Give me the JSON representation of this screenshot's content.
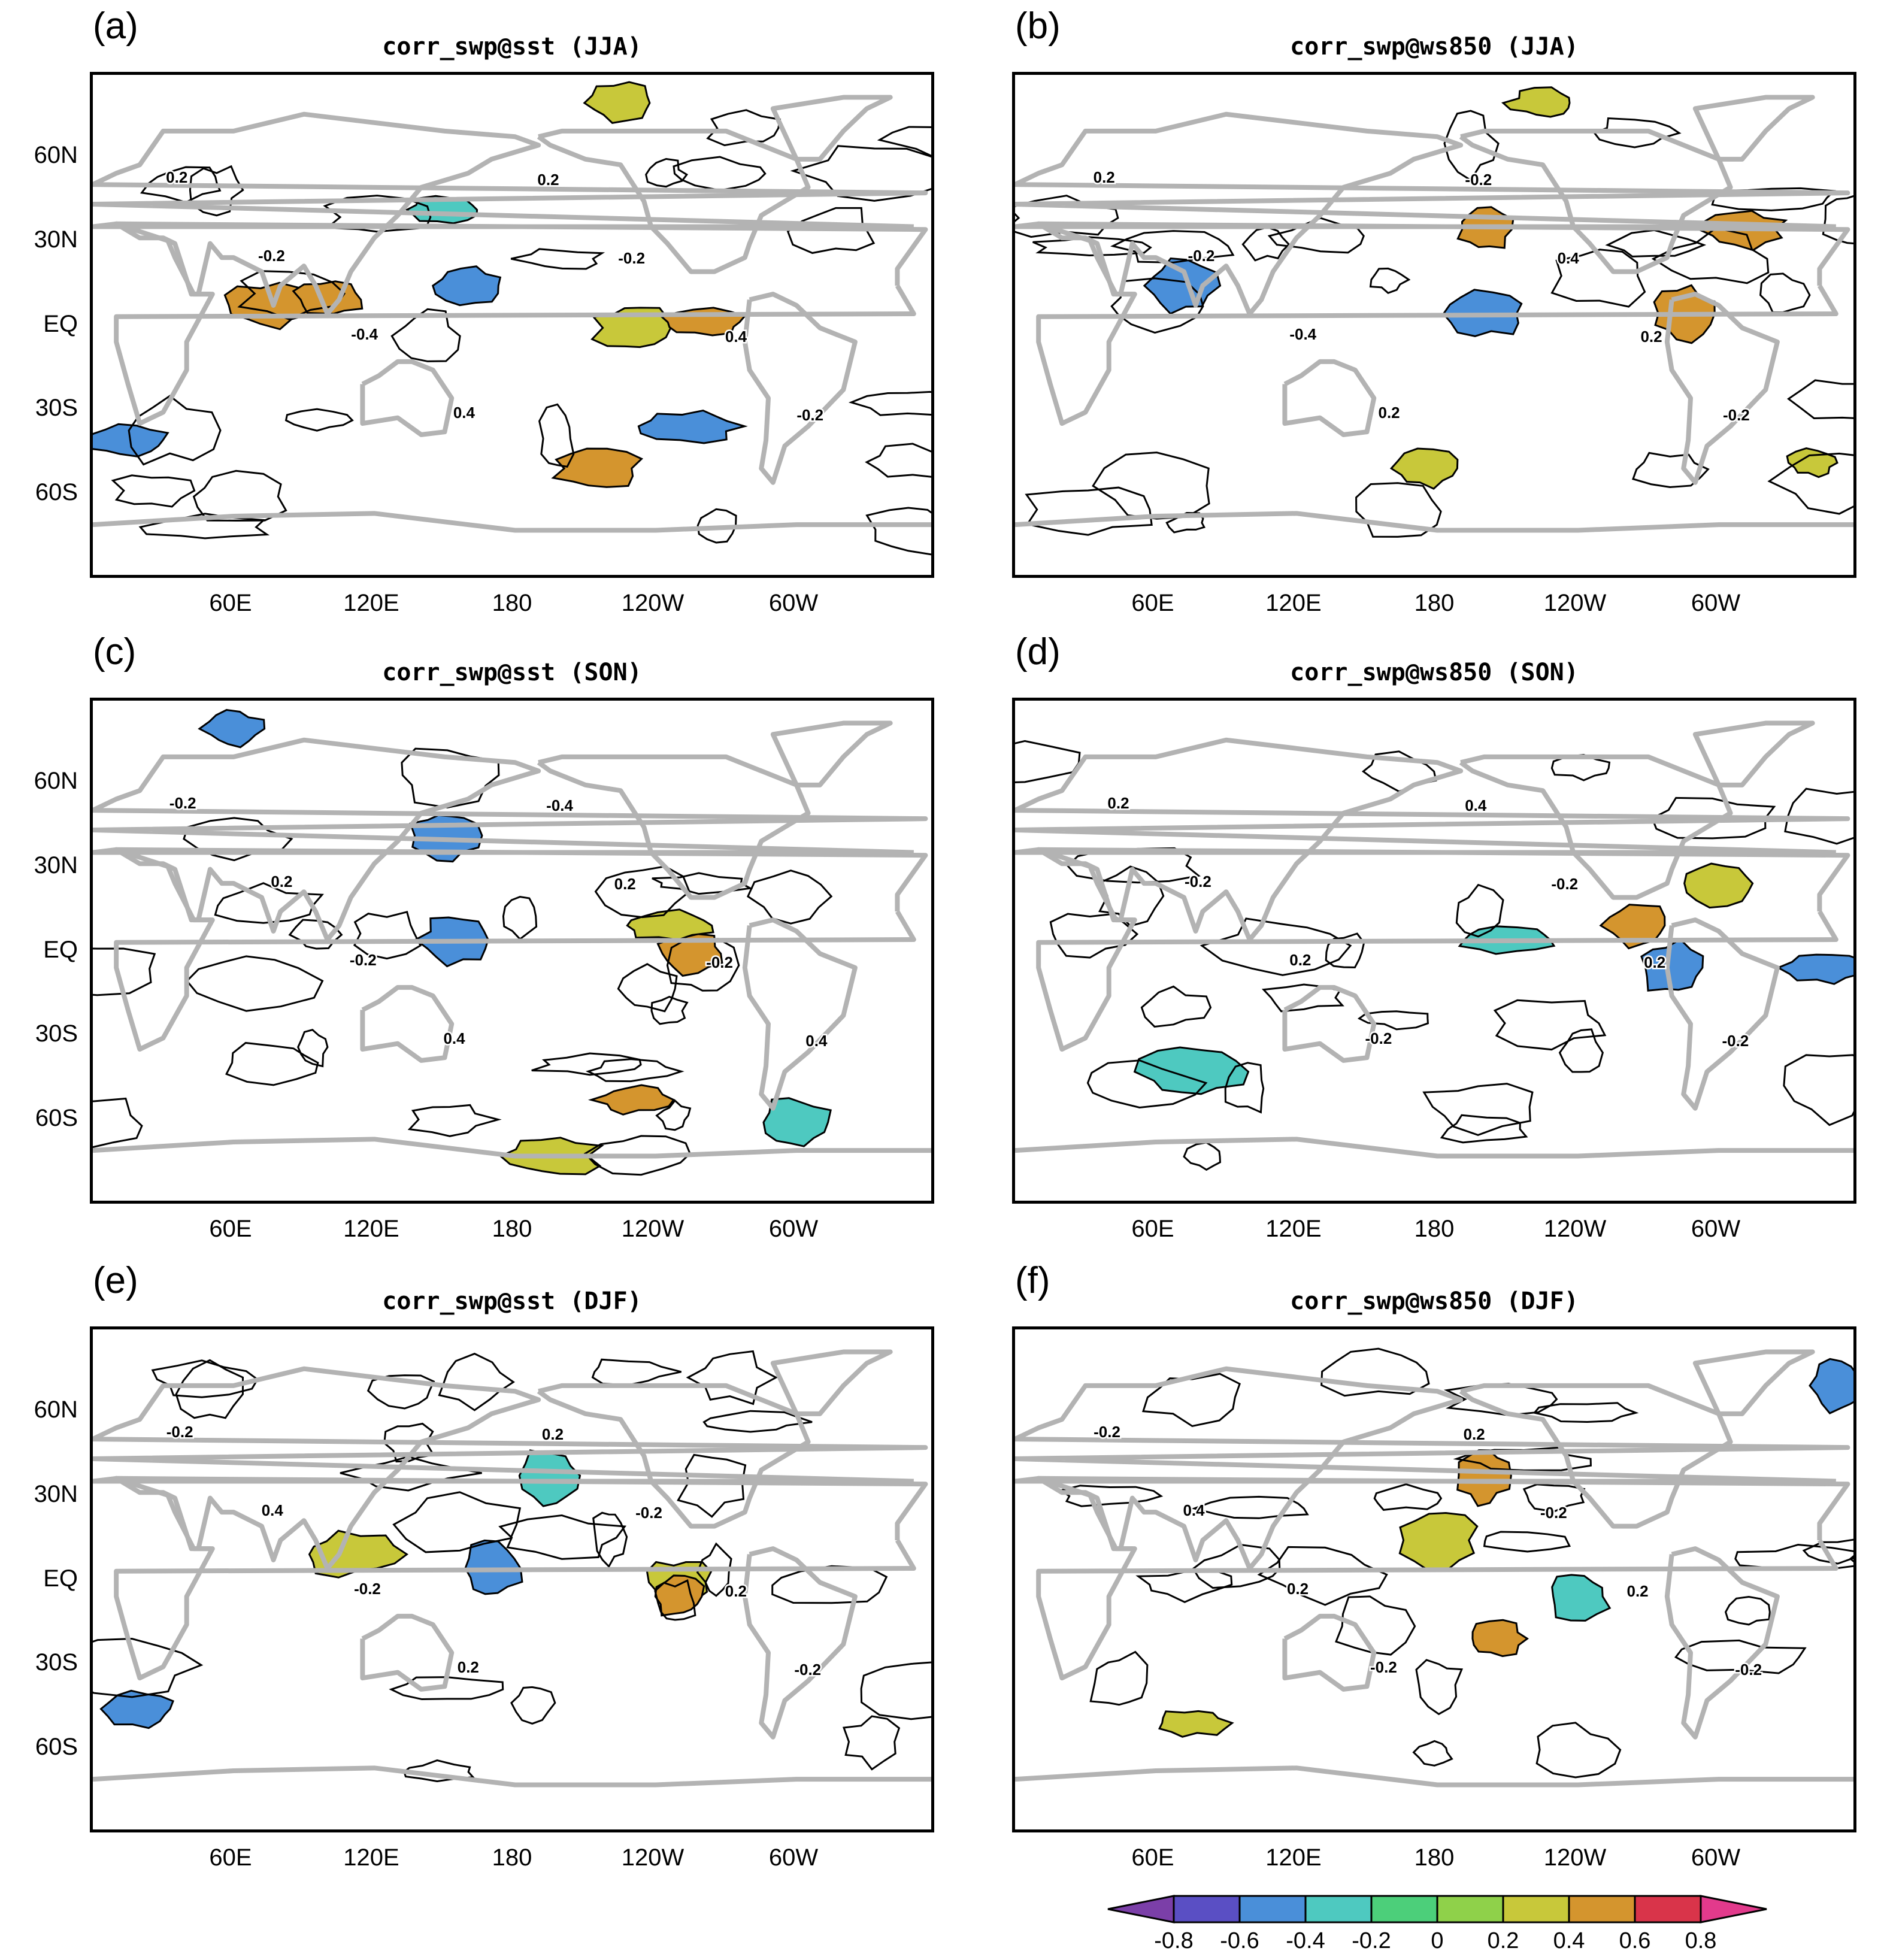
{
  "colors": {
    "land_outline": "#b3b3b3",
    "contour": "#000000",
    "neg_0_6": "#4a8fd9",
    "neg_0_4": "#4ec9c0",
    "pos_0_2": "#c8c83a",
    "pos_0_4": "#d4952e",
    "pos_0_6": "#d9344a"
  },
  "axes": {
    "lat_ticks": [
      "60N",
      "30N",
      "EQ",
      "30S",
      "60S"
    ],
    "lon_ticks": [
      "60E",
      "120E",
      "180",
      "120W",
      "60W"
    ]
  },
  "panels": [
    {
      "id": "a",
      "letter": "(a)",
      "title": "corr_swp@sst (JJA)",
      "contour_labels": [
        "0.2",
        "-0.2",
        "-0.4",
        "0.4",
        "0.2",
        "-0.2",
        "0.4",
        "-0.2"
      ],
      "blobs": [
        {
          "color": "pos_0_4",
          "lon": 75,
          "lat": 8
        },
        {
          "color": "pos_0_4",
          "lon": 100,
          "lat": 10
        },
        {
          "color": "pos_0_2",
          "lon": 230,
          "lat": 0
        },
        {
          "color": "pos_0_4",
          "lon": 260,
          "lat": 2
        },
        {
          "color": "neg_0_6",
          "lon": 160,
          "lat": 15
        },
        {
          "color": "neg_0_6",
          "lon": 255,
          "lat": -35
        },
        {
          "color": "pos_0_4",
          "lon": 215,
          "lat": -50
        },
        {
          "color": "neg_0_6",
          "lon": 15,
          "lat": -40
        },
        {
          "color": "neg_0_4",
          "lon": 150,
          "lat": 42
        },
        {
          "color": "pos_0_2",
          "lon": 225,
          "lat": 80
        }
      ]
    },
    {
      "id": "b",
      "letter": "(b)",
      "title": "corr_swp@ws850 (JJA)",
      "contour_labels": [
        "0.2",
        "-0.2",
        "-0.4",
        "0.2",
        "-0.2",
        "0.4",
        "0.2",
        "-0.2"
      ],
      "blobs": [
        {
          "color": "neg_0_6",
          "lon": 200,
          "lat": 5
        },
        {
          "color": "pos_0_2",
          "lon": 175,
          "lat": -50
        },
        {
          "color": "pos_0_4",
          "lon": 310,
          "lat": 35
        },
        {
          "color": "pos_0_2",
          "lon": 340,
          "lat": -48
        },
        {
          "color": "pos_0_2",
          "lon": 225,
          "lat": 80
        },
        {
          "color": "pos_0_4",
          "lon": 200,
          "lat": 35
        },
        {
          "color": "neg_0_6",
          "lon": 70,
          "lat": 15
        },
        {
          "color": "pos_0_4",
          "lon": 285,
          "lat": 5
        }
      ]
    },
    {
      "id": "c",
      "letter": "(c)",
      "title": "corr_swp@sst (SON)",
      "contour_labels": [
        "-0.2",
        "0.2",
        "-0.2",
        "0.4",
        "-0.4",
        "0.2",
        "-0.2",
        "0.4"
      ],
      "blobs": [
        {
          "color": "neg_0_6",
          "lon": 155,
          "lat": 5
        },
        {
          "color": "pos_0_4",
          "lon": 255,
          "lat": 0
        },
        {
          "color": "pos_0_2",
          "lon": 245,
          "lat": 10
        },
        {
          "color": "pos_0_4",
          "lon": 230,
          "lat": -52
        },
        {
          "color": "neg_0_6",
          "lon": 150,
          "lat": 42
        },
        {
          "color": "neg_0_4",
          "lon": 300,
          "lat": -60
        },
        {
          "color": "neg_0_6",
          "lon": 60,
          "lat": 80
        },
        {
          "color": "pos_0_2",
          "lon": 195,
          "lat": -72
        }
      ]
    },
    {
      "id": "d",
      "letter": "(d)",
      "title": "corr_swp@ws850 (SON)",
      "contour_labels": [
        "0.2",
        "-0.2",
        "0.2",
        "-0.2",
        "0.4",
        "-0.2",
        "0.2",
        "-0.2"
      ],
      "blobs": [
        {
          "color": "neg_0_6",
          "lon": 280,
          "lat": -5
        },
        {
          "color": "pos_0_4",
          "lon": 265,
          "lat": 10
        },
        {
          "color": "neg_0_4",
          "lon": 75,
          "lat": -42
        },
        {
          "color": "neg_0_4",
          "lon": 210,
          "lat": 5
        },
        {
          "color": "pos_0_2",
          "lon": 300,
          "lat": 25
        },
        {
          "color": "neg_0_6",
          "lon": 345,
          "lat": -5
        }
      ]
    },
    {
      "id": "e",
      "letter": "(e)",
      "title": "corr_swp@sst (DJF)",
      "contour_labels": [
        "-0.2",
        "0.4",
        "-0.2",
        "0.2",
        "0.2",
        "-0.2",
        "0.2",
        "-0.2"
      ],
      "blobs": [
        {
          "color": "neg_0_6",
          "lon": 170,
          "lat": 5
        },
        {
          "color": "pos_0_2",
          "lon": 250,
          "lat": 0
        },
        {
          "color": "pos_0_4",
          "lon": 250,
          "lat": -5
        },
        {
          "color": "neg_0_4",
          "lon": 195,
          "lat": 38
        },
        {
          "color": "neg_0_6",
          "lon": 20,
          "lat": -45
        },
        {
          "color": "pos_0_2",
          "lon": 110,
          "lat": 10
        }
      ]
    },
    {
      "id": "f",
      "letter": "(f)",
      "title": "corr_swp@ws850 (DJF)",
      "contour_labels": [
        "-0.2",
        "0.4",
        "0.2",
        "-0.2",
        "0.2",
        "-0.2",
        "0.2",
        "-0.2"
      ],
      "blobs": [
        {
          "color": "pos_0_4",
          "lon": 200,
          "lat": 38
        },
        {
          "color": "neg_0_4",
          "lon": 240,
          "lat": -5
        },
        {
          "color": "pos_0_4",
          "lon": 205,
          "lat": -20
        },
        {
          "color": "pos_0_2",
          "lon": 180,
          "lat": 15
        },
        {
          "color": "pos_0_2",
          "lon": 75,
          "lat": -50
        },
        {
          "color": "neg_0_6",
          "lon": 350,
          "lat": 70
        }
      ]
    }
  ],
  "colorbar": {
    "ticks": [
      "-0.8",
      "-0.6",
      "-0.4",
      "-0.2",
      "0",
      "0.2",
      "0.4",
      "0.6",
      "0.8"
    ],
    "colors": [
      "#7b3fa8",
      "#5a4fc4",
      "#4a8fd9",
      "#4ec9c0",
      "#4ccf7a",
      "#8fd14a",
      "#c8c83a",
      "#d4952e",
      "#d9344a",
      "#e23a8c"
    ]
  }
}
